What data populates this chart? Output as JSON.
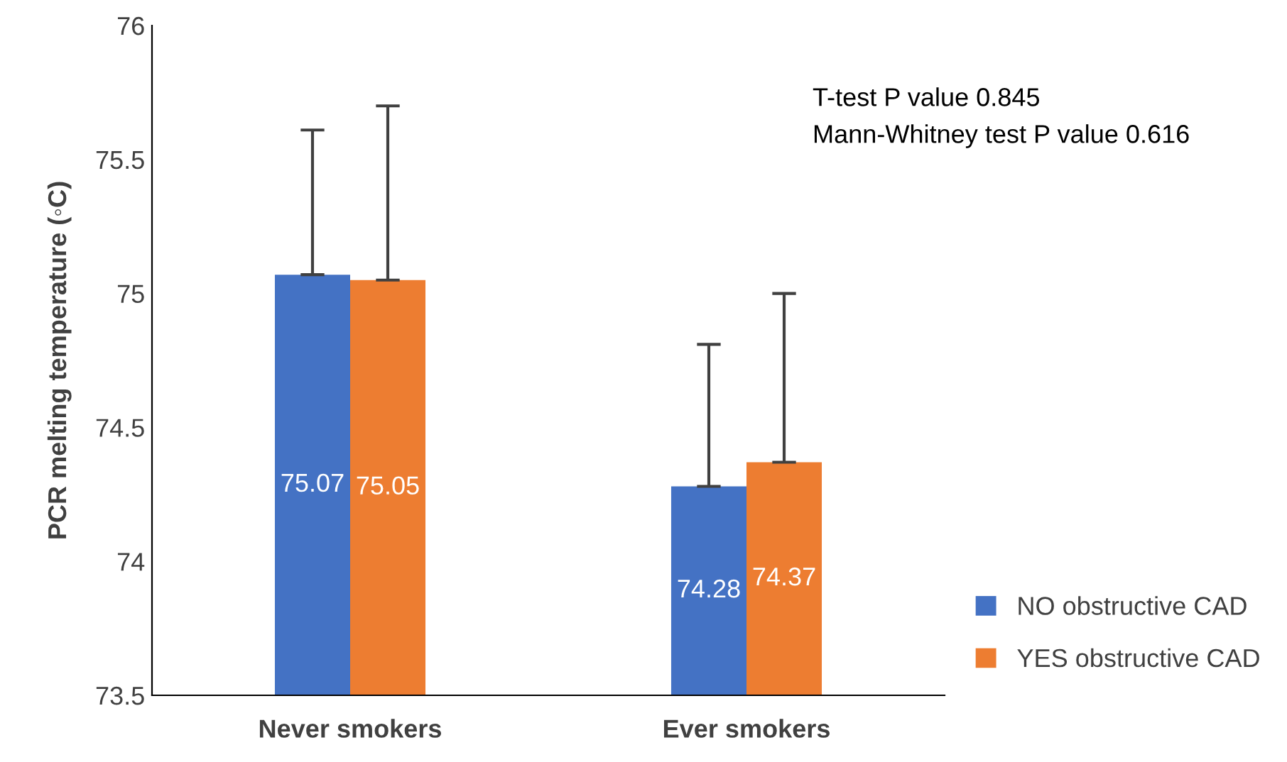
{
  "chart_data": {
    "type": "bar",
    "ylabel": "PCR melting temperature (◦C)",
    "categories": [
      "Never smokers",
      "Ever smokers"
    ],
    "series": [
      {
        "name": "NO obstructive CAD",
        "color": "#4472c4",
        "values": [
          75.07,
          74.28
        ],
        "errors": [
          [
            75.07,
            75.61
          ],
          [
            74.28,
            74.81
          ]
        ]
      },
      {
        "name": "YES obstructive CAD",
        "color": "#ed7d31",
        "values": [
          75.05,
          74.37
        ],
        "errors": [
          [
            75.05,
            75.7
          ],
          [
            74.37,
            75.0
          ]
        ]
      }
    ],
    "ylim": [
      73.5,
      76
    ],
    "yticks": [
      73.5,
      74,
      74.5,
      75,
      75.5,
      76
    ],
    "grid": false,
    "legend": "bottom right",
    "data_labels": true,
    "annotations": [
      "T-test P value 0.845",
      "Mann-Whitney test P value 0.616"
    ]
  }
}
